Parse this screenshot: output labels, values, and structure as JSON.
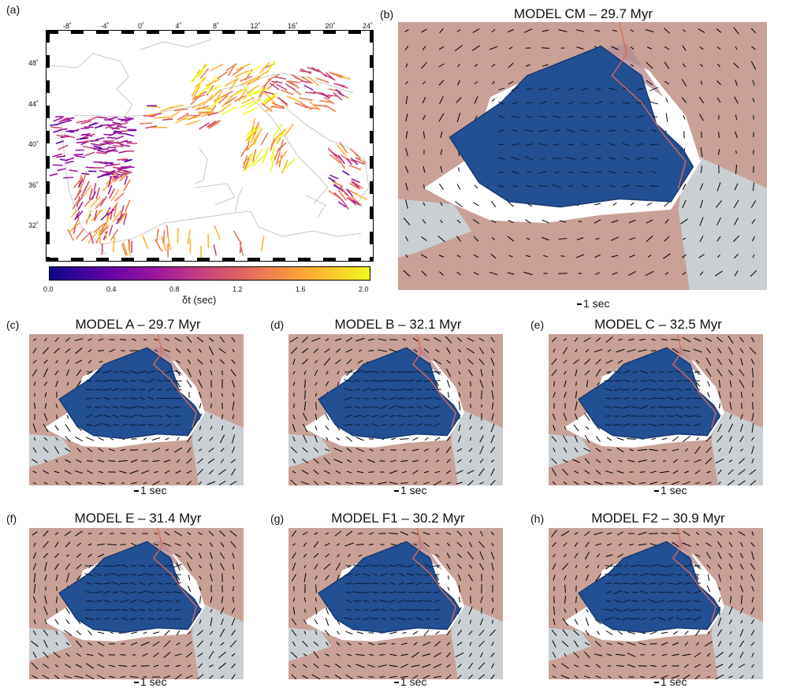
{
  "panel_a": {
    "label": "(a)",
    "lon_ticks": [
      "-8˚",
      "-4˚",
      "0˚",
      "4˚",
      "8˚",
      "12˚",
      "16˚",
      "20˚",
      "24˚"
    ],
    "lat_ticks": [
      "48˚",
      "44˚",
      "40˚",
      "36˚",
      "32˚"
    ],
    "colorbar": {
      "ticks": [
        "0.0",
        "0.4",
        "0.8",
        "1.2",
        "1.6",
        "2.0"
      ],
      "title": "δt (sec)",
      "colors": [
        "#0d0887",
        "#5c01a6",
        "#9c179e",
        "#cc4778",
        "#ed7953",
        "#fdb42f",
        "#f0f921"
      ]
    }
  },
  "models": [
    {
      "label": "(b)",
      "title": "MODEL CM – 29.7 Myr",
      "scale": "1 sec"
    },
    {
      "label": "(c)",
      "title": "MODEL A – 29.7 Myr",
      "scale": "1 sec"
    },
    {
      "label": "(d)",
      "title": "MODEL B – 32.1 Myr",
      "scale": "1 sec"
    },
    {
      "label": "(e)",
      "title": "MODEL C – 32.5 Myr",
      "scale": "1 sec"
    },
    {
      "label": "(f)",
      "title": "MODEL E – 31.4 Myr",
      "scale": "1 sec"
    },
    {
      "label": "(g)",
      "title": "MODEL F1 – 30.2 Myr",
      "scale": "1 sec"
    },
    {
      "label": "(h)",
      "title": "MODEL F2 – 30.9 Myr",
      "scale": "1 sec"
    }
  ],
  "colors": {
    "continent": "#c9a196",
    "ocean": "#c9cfd2",
    "slab": "#234f93",
    "slab_edge": "#173a72",
    "coast_outline": "#e06a55"
  }
}
